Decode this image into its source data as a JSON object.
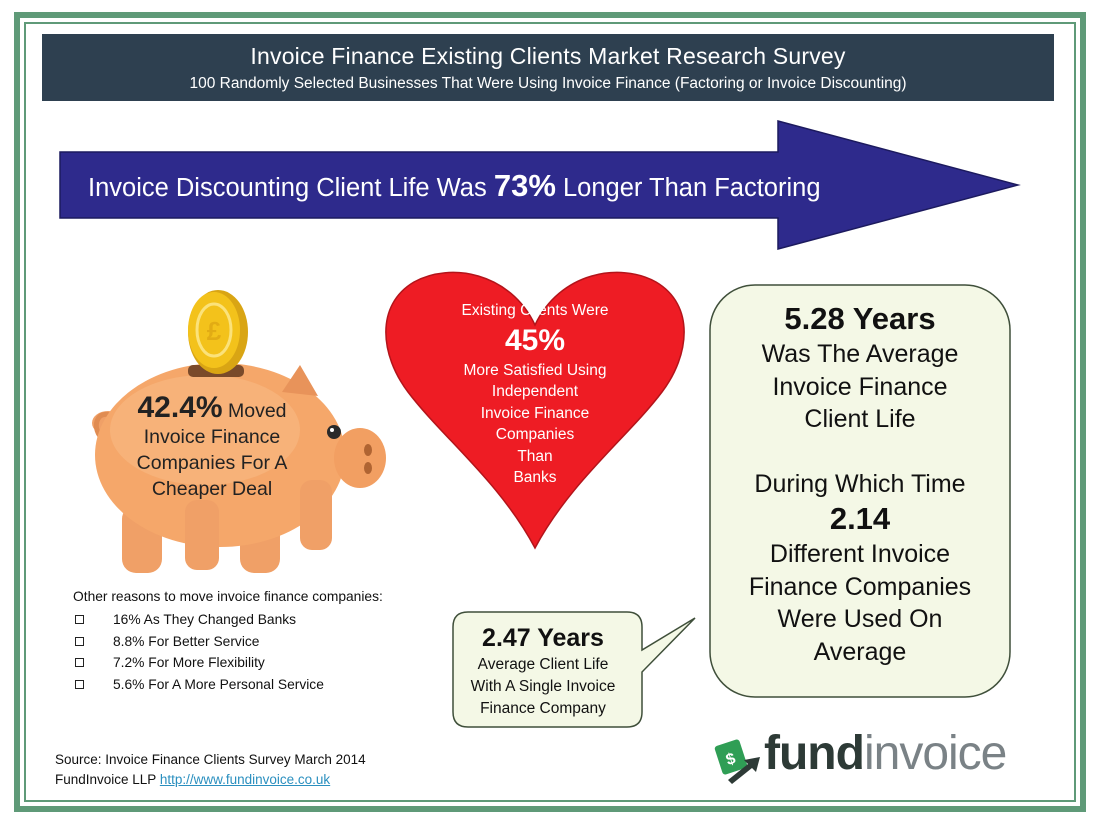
{
  "header": {
    "title": "Invoice Finance Existing Clients Market Research Survey",
    "subtitle": "100 Randomly Selected Businesses That Were Using Invoice Finance (Factoring or Invoice Discounting)"
  },
  "arrow": {
    "text_before": "Invoice Discounting Client Life Was",
    "highlight": "73%",
    "text_after": "Longer Than Factoring"
  },
  "heart": {
    "line1": "Existing Clients Were",
    "highlight": "45%",
    "lines": [
      "More Satisfied Using",
      "Independent",
      "Invoice Finance",
      "Companies",
      "Than",
      "Banks"
    ]
  },
  "piggy": {
    "highlight": "42.4%",
    "line1_rest": "Moved",
    "lines": [
      "Invoice Finance",
      "Companies For A",
      "Cheaper Deal"
    ]
  },
  "reasons": {
    "heading": "Other reasons to move invoice finance companies:",
    "items": [
      "16% As They Changed Banks",
      "8.8% For Better Service",
      "7.2% For More Flexibility",
      "5.6% For A More Personal Service"
    ]
  },
  "right_box": {
    "highlight1": "5.28 Years",
    "lines1": [
      "Was The Average",
      "Invoice Finance",
      "Client Life"
    ],
    "line_during": "During Which Time",
    "highlight2": "2.14",
    "lines2": [
      "Different Invoice",
      "Finance Companies",
      "Were Used On",
      "Average"
    ]
  },
  "bubble": {
    "highlight": "2.47 Years",
    "lines": [
      "Average Client Life",
      "With A Single Invoice",
      "Finance Company"
    ]
  },
  "source": {
    "line1": "Source: Invoice Finance Clients Survey March 2014",
    "line2_prefix": "FundInvoice LLP",
    "link": "http://www.fundinvoice.co.uk"
  },
  "logo": {
    "fund": "fund",
    "invoice": "invoice",
    "icon": "money-arrow-icon"
  },
  "colors": {
    "frame": "#5f9a78",
    "banner": "#2e4050",
    "arrow": "#2e2a8c",
    "heart": "#ee1c24",
    "box_fill": "#f4f8e6",
    "pig": "#f5a76a",
    "coin": "#f3c21b"
  }
}
